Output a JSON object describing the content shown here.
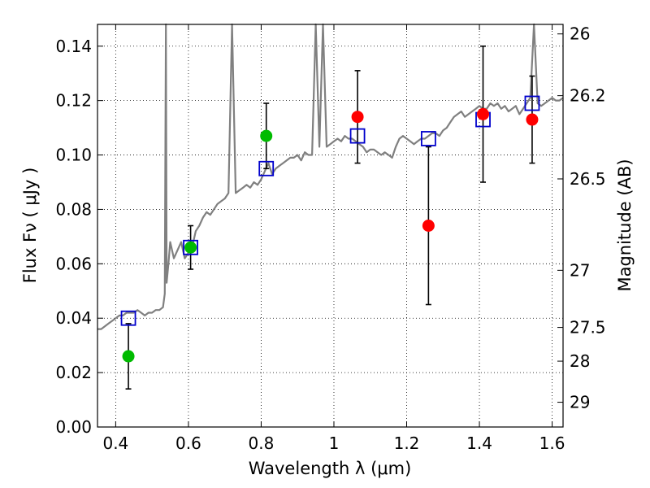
{
  "chart_data": {
    "type": "scatter",
    "xlabel": "Wavelength  λ (μm)",
    "ylabel": "Flux  Fν  ( μJy )",
    "y2label": "Magnitude (AB)",
    "xlim": [
      0.35,
      1.63
    ],
    "ylim": [
      0.0,
      0.148
    ],
    "grid": true,
    "x_ticks": [
      0.4,
      0.6,
      0.8,
      1.0,
      1.2,
      1.4,
      1.6
    ],
    "x_tick_labels": [
      "0.4",
      "0.6",
      "0.8",
      "1",
      "1.2",
      "1.4",
      "1.6"
    ],
    "y_ticks": [
      0.0,
      0.02,
      0.04,
      0.06,
      0.08,
      0.1,
      0.12,
      0.14
    ],
    "y_tick_labels": [
      "0.00",
      "0.02",
      "0.04",
      "0.06",
      "0.08",
      "0.10",
      "0.12",
      "0.14"
    ],
    "y2_ticks": [
      {
        "label": "26",
        "flux": 0.1445
      },
      {
        "label": "26.2",
        "flux": 0.1218
      },
      {
        "label": "26.5",
        "flux": 0.0912
      },
      {
        "label": "27",
        "flux": 0.0576
      },
      {
        "label": "27.5",
        "flux": 0.0366
      },
      {
        "label": "28",
        "flux": 0.0242
      },
      {
        "label": "29",
        "flux": 0.0091
      }
    ],
    "colors": {
      "model_line": "#808080",
      "green_points": "#00bb00",
      "red_points": "#ff0000",
      "open_squares": "#0000cc",
      "error_bars": "#000000",
      "grid": "#000000"
    },
    "series": [
      {
        "kind": "line",
        "color": "#808080",
        "x": [
          0.35,
          0.36,
          0.37,
          0.38,
          0.39,
          0.4,
          0.41,
          0.42,
          0.43,
          0.44,
          0.45,
          0.46,
          0.47,
          0.48,
          0.49,
          0.5,
          0.51,
          0.52,
          0.53,
          0.535,
          0.538,
          0.54,
          0.545,
          0.55,
          0.56,
          0.57,
          0.58,
          0.59,
          0.6,
          0.61,
          0.62,
          0.63,
          0.64,
          0.65,
          0.66,
          0.67,
          0.68,
          0.69,
          0.7,
          0.71,
          0.72,
          0.73,
          0.74,
          0.75,
          0.76,
          0.77,
          0.78,
          0.79,
          0.8,
          0.81,
          0.82,
          0.83,
          0.84,
          0.85,
          0.86,
          0.87,
          0.88,
          0.89,
          0.9,
          0.91,
          0.92,
          0.93,
          0.94,
          0.95,
          0.96,
          0.97,
          0.98,
          0.99,
          1.0,
          1.01,
          1.02,
          1.03,
          1.04,
          1.05,
          1.06,
          1.07,
          1.08,
          1.09,
          1.1,
          1.11,
          1.12,
          1.13,
          1.14,
          1.15,
          1.16,
          1.17,
          1.18,
          1.19,
          1.2,
          1.21,
          1.22,
          1.23,
          1.24,
          1.25,
          1.26,
          1.27,
          1.28,
          1.29,
          1.3,
          1.31,
          1.32,
          1.33,
          1.34,
          1.35,
          1.36,
          1.37,
          1.38,
          1.39,
          1.4,
          1.41,
          1.42,
          1.43,
          1.44,
          1.45,
          1.46,
          1.47,
          1.48,
          1.49,
          1.5,
          1.51,
          1.52,
          1.53,
          1.54,
          1.55,
          1.56,
          1.57,
          1.58,
          1.59,
          1.6,
          1.61,
          1.62,
          1.63
        ],
        "y": [
          0.036,
          0.036,
          0.037,
          0.038,
          0.039,
          0.04,
          0.041,
          0.041,
          0.042,
          0.042,
          0.042,
          0.043,
          0.042,
          0.041,
          0.042,
          0.042,
          0.043,
          0.043,
          0.044,
          0.049,
          0.148,
          0.053,
          0.06,
          0.068,
          0.062,
          0.065,
          0.068,
          0.062,
          0.064,
          0.066,
          0.072,
          0.074,
          0.077,
          0.079,
          0.078,
          0.08,
          0.082,
          0.083,
          0.084,
          0.086,
          0.148,
          0.086,
          0.087,
          0.088,
          0.089,
          0.088,
          0.09,
          0.089,
          0.091,
          0.094,
          0.097,
          0.093,
          0.095,
          0.096,
          0.097,
          0.098,
          0.099,
          0.099,
          0.1,
          0.098,
          0.101,
          0.1,
          0.1,
          0.148,
          0.103,
          0.148,
          0.103,
          0.104,
          0.105,
          0.106,
          0.105,
          0.107,
          0.106,
          0.106,
          0.105,
          0.104,
          0.103,
          0.101,
          0.102,
          0.102,
          0.101,
          0.1,
          0.101,
          0.1,
          0.099,
          0.103,
          0.106,
          0.107,
          0.106,
          0.105,
          0.104,
          0.105,
          0.106,
          0.106,
          0.107,
          0.108,
          0.108,
          0.107,
          0.109,
          0.11,
          0.112,
          0.114,
          0.115,
          0.116,
          0.114,
          0.115,
          0.116,
          0.117,
          0.118,
          0.117,
          0.117,
          0.119,
          0.118,
          0.119,
          0.117,
          0.118,
          0.116,
          0.117,
          0.118,
          0.115,
          0.117,
          0.119,
          0.121,
          0.148,
          0.119,
          0.118,
          0.119,
          0.12,
          0.121,
          0.12,
          0.12,
          0.121
        ]
      },
      {
        "kind": "points-errorbars",
        "color": "#00bb00",
        "points": [
          {
            "x": 0.435,
            "y": 0.026,
            "yerr": 0.012
          },
          {
            "x": 0.606,
            "y": 0.066,
            "yerr": 0.008
          },
          {
            "x": 0.814,
            "y": 0.107,
            "yerr": 0.012
          }
        ]
      },
      {
        "kind": "points-errorbars",
        "color": "#ff0000",
        "points": [
          {
            "x": 1.065,
            "y": 0.114,
            "yerr": 0.017
          },
          {
            "x": 1.26,
            "y": 0.074,
            "yerr": 0.029
          },
          {
            "x": 1.41,
            "y": 0.115,
            "yerr": 0.025
          },
          {
            "x": 1.545,
            "y": 0.113,
            "yerr": 0.016
          }
        ]
      },
      {
        "kind": "open-squares",
        "color": "#0000cc",
        "points": [
          {
            "x": 0.435,
            "y": 0.04
          },
          {
            "x": 0.606,
            "y": 0.066
          },
          {
            "x": 0.814,
            "y": 0.095
          },
          {
            "x": 1.065,
            "y": 0.107
          },
          {
            "x": 1.26,
            "y": 0.106
          },
          {
            "x": 1.41,
            "y": 0.113
          },
          {
            "x": 1.545,
            "y": 0.119
          }
        ]
      }
    ]
  }
}
